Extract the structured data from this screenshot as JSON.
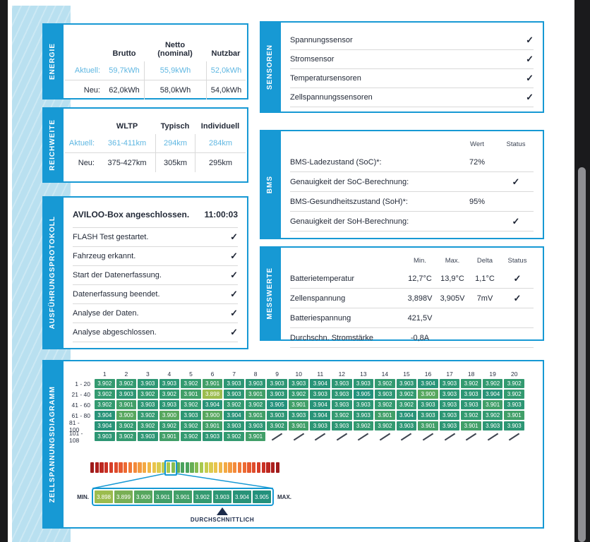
{
  "colors": {
    "accent": "#1799d4",
    "band_blue": "#b9e0f0",
    "text_dark": "#232a38",
    "text_light_blue": "#5fb7e2",
    "divider": "#d9d9d9",
    "scroll_track": "#1a1a1c",
    "scroll_thumb": "#8f8f93"
  },
  "sections": {
    "energie": {
      "label": "ENERGIE",
      "columns": [
        "Brutto",
        "Netto\n(nominal)",
        "Nutzbar"
      ],
      "rows": [
        {
          "label": "Aktuell:",
          "values": [
            "59,7kWh",
            "55,9kWh",
            "52,0kWh"
          ]
        },
        {
          "label": "Neu:",
          "values": [
            "62,0kWh",
            "58,0kWh",
            "54,0kWh"
          ]
        }
      ]
    },
    "reichweite": {
      "label": "REICHWEITE",
      "columns": [
        "WLTP",
        "Typisch",
        "Individuell"
      ],
      "rows": [
        {
          "label": "Aktuell:",
          "values": [
            "361-411km",
            "294km",
            "284km"
          ]
        },
        {
          "label": "Neu:",
          "values": [
            "375-427km",
            "305km",
            "295km"
          ]
        }
      ]
    },
    "protokoll": {
      "label": "AUSFÜHRUNGSPROTOKOLL",
      "title": "AVILOO-Box angeschlossen.",
      "time": "11:00:03",
      "items": [
        "FLASH Test gestartet.",
        "Fahrzeug erkannt.",
        "Start der Datenerfassung.",
        "Datenerfassung beendet.",
        "Analyse der Daten.",
        "Analyse abgeschlossen."
      ]
    },
    "sensoren": {
      "label": "SENSOREN",
      "items": [
        "Spannungssensor",
        "Stromsensor",
        "Temperatursensoren",
        "Zellspannungssensoren"
      ]
    },
    "bms": {
      "label": "BMS",
      "headers": [
        "Wert",
        "Status"
      ],
      "rows": [
        {
          "label": "BMS-Ladezustand (SoC)*:",
          "wert": "72%",
          "check": false
        },
        {
          "label": "Genauigkeit der SoC-Berechnung:",
          "wert": "",
          "check": true
        },
        {
          "label": "BMS-Gesundheitszustand (SoH)*:",
          "wert": "95%",
          "check": false
        },
        {
          "label": "Genauigkeit der SoH-Berechnung:",
          "wert": "",
          "check": true
        }
      ]
    },
    "messwerte": {
      "label": "MESSWERTE",
      "headers": [
        "Min.",
        "Max.",
        "Delta",
        "Status"
      ],
      "rows": [
        {
          "label": "Batterietemperatur",
          "min": "12,7°C",
          "max": "13,9°C",
          "delta": "1,1°C",
          "check": true
        },
        {
          "label": "Zellenspannung",
          "min": "3,898V",
          "max": "3,905V",
          "delta": "7mV",
          "check": true
        },
        {
          "label": "Batteriespannung",
          "min": "421,5V",
          "max": "",
          "delta": "",
          "check": false
        },
        {
          "label": "Durchschn. Stromstärke",
          "min": "-0,8A",
          "max": "",
          "delta": "",
          "check": false
        }
      ]
    },
    "zellspannung": {
      "label": "ZELLSPANNUNGSDIAGRAMM",
      "col_headers": [
        "1",
        "2",
        "3",
        "4",
        "5",
        "6",
        "7",
        "8",
        "9",
        "10",
        "11",
        "12",
        "13",
        "14",
        "15",
        "16",
        "17",
        "18",
        "19",
        "20"
      ],
      "row_labels": [
        "1 - 20",
        "21 - 40",
        "41 - 60",
        "61 - 80",
        "81 - 100",
        "101 - 108"
      ],
      "scale_cells": [
        "3.898",
        "3.899",
        "3.900",
        "3.901",
        "3.901",
        "3.902",
        "3.903",
        "3.904",
        "3.905"
      ],
      "min_label": "MIN.",
      "max_label": "MAX.",
      "avg_label": "DURCHSCHNITTLICH",
      "avg_cell_index": 6,
      "color_scale": {
        "3.898": "#9cbc4e",
        "3.899": "#79af55",
        "3.900": "#57a75e",
        "3.901": "#419f68",
        "3.902": "#339a70",
        "3.903": "#2d9674",
        "3.904": "#289378",
        "3.905": "#23917c"
      },
      "strip_half_colors": [
        "#9e1b1b",
        "#ad1f1d",
        "#bc2720",
        "#ca3124",
        "#d53e28",
        "#df4c2c",
        "#e75a2f",
        "#ed6a33",
        "#f17a37",
        "#f38a3b",
        "#f49a40",
        "#f3a944",
        "#f0b848",
        "#e9c44c",
        "#dccb4e",
        "#c6cc4e",
        "#a8c84f",
        "#86bc51",
        "#66ae55",
        "#4aa35d"
      ],
      "strip_segments": 40,
      "strip_highlight": {
        "start": 16,
        "count": 2
      }
    }
  },
  "chart_data": {
    "type": "heatmap",
    "title": "Zellspannungsdiagramm",
    "unit": "V",
    "columns": [
      1,
      2,
      3,
      4,
      5,
      6,
      7,
      8,
      9,
      10,
      11,
      12,
      13,
      14,
      15,
      16,
      17,
      18,
      19,
      20
    ],
    "row_labels": [
      "1 - 20",
      "21 - 40",
      "41 - 60",
      "61 - 80",
      "81 - 100",
      "101 - 108"
    ],
    "values": [
      [
        "3.902",
        "3.902",
        "3.903",
        "3.903",
        "3.902",
        "3.901",
        "3.903",
        "3.903",
        "3.903",
        "3.903",
        "3.904",
        "3.903",
        "3.903",
        "3.902",
        "3.903",
        "3.904",
        "3.903",
        "3.902",
        "3.902",
        "3.902"
      ],
      [
        "3.902",
        "3.903",
        "3.902",
        "3.902",
        "3.901",
        "3.898",
        "3.903",
        "3.901",
        "3.903",
        "3.902",
        "3.903",
        "3.903",
        "3.905",
        "3.903",
        "3.902",
        "3.900",
        "3.903",
        "3.903",
        "3.904",
        "3.902"
      ],
      [
        "3.902",
        "3.901",
        "3.903",
        "3.903",
        "3.902",
        "3.904",
        "3.902",
        "3.902",
        "3.905",
        "3.901",
        "3.904",
        "3.903",
        "3.903",
        "3.902",
        "3.902",
        "3.903",
        "3.903",
        "3.903",
        "3.901",
        "3.903"
      ],
      [
        "3.904",
        "3.900",
        "3.902",
        "3.900",
        "3.903",
        "3.900",
        "3.904",
        "3.901",
        "3.903",
        "3.903",
        "3.904",
        "3.902",
        "3.903",
        "3.901",
        "3.904",
        "3.903",
        "3.903",
        "3.902",
        "3.902",
        "3.901"
      ],
      [
        "3.904",
        "3.902",
        "3.902",
        "3.902",
        "3.902",
        "3.901",
        "3.903",
        "3.903",
        "3.902",
        "3.901",
        "3.903",
        "3.903",
        "3.902",
        "3.902",
        "3.903",
        "3.901",
        "3.903",
        "3.901",
        "3.903",
        "3.903"
      ],
      [
        "3.903",
        "3.902",
        "3.903",
        "3.901",
        "3.902",
        "3.903",
        "3.902",
        "3.901",
        null,
        null,
        null,
        null,
        null,
        null,
        null,
        null,
        null,
        null,
        null,
        null
      ]
    ],
    "min": 3.898,
    "max": 3.905,
    "average": 3.903
  }
}
